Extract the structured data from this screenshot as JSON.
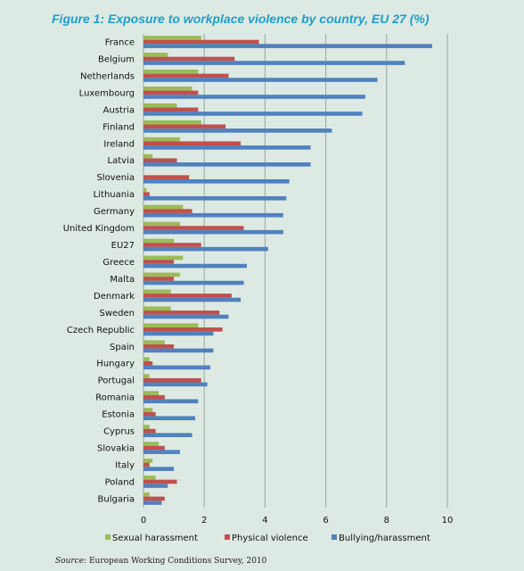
{
  "title": "Figure 1: Exposure to workplace violence by country, EU 27 (%)",
  "source": {
    "label": "Source:",
    "text": "European Working Conditions Survey, 2010"
  },
  "colors": {
    "sexual": "#9bbb59",
    "physical": "#c0504d",
    "bullying": "#4f81bd",
    "grid": "#9aa59f",
    "background": "#dde9e3"
  },
  "chart_data": {
    "type": "bar",
    "orientation": "horizontal",
    "title": "Figure 1: Exposure to workplace violence by country, EU 27 (%)",
    "xlabel": "",
    "ylabel": "",
    "xlim": [
      0,
      10
    ],
    "xticks": [
      0,
      2,
      4,
      6,
      8,
      10
    ],
    "grid": true,
    "legend_position": "bottom",
    "categories": [
      "France",
      "Belgium",
      "Netherlands",
      "Luxembourg",
      "Austria",
      "Finland",
      "Ireland",
      "Latvia",
      "Slovenia",
      "Lithuania",
      "Germany",
      "United Kingdom",
      "EU27",
      "Greece",
      "Malta",
      "Denmark",
      "Sweden",
      "Czech Republic",
      "Spain",
      "Hungary",
      "Portugal",
      "Romania",
      "Estonia",
      "Cyprus",
      "Slovakia",
      "Italy",
      "Poland",
      "Bulgaria"
    ],
    "series": [
      {
        "name": "Sexual harassment",
        "color": "#9bbb59",
        "values": [
          1.9,
          0.8,
          1.8,
          1.6,
          1.1,
          1.9,
          1.2,
          0.3,
          0.0,
          0.1,
          1.3,
          1.2,
          1.0,
          1.3,
          1.2,
          0.9,
          0.9,
          1.8,
          0.7,
          0.2,
          0.2,
          0.5,
          0.3,
          0.2,
          0.5,
          0.3,
          0.4,
          0.2
        ]
      },
      {
        "name": "Physical violence",
        "color": "#c0504d",
        "values": [
          3.8,
          3.0,
          2.8,
          1.8,
          1.8,
          2.7,
          3.2,
          1.1,
          1.5,
          0.2,
          1.6,
          3.3,
          1.9,
          1.0,
          1.0,
          2.9,
          2.5,
          2.6,
          1.0,
          0.3,
          1.9,
          0.7,
          0.4,
          0.4,
          0.7,
          0.2,
          1.1,
          0.7
        ]
      },
      {
        "name": "Bullying/harassment",
        "color": "#4f81bd",
        "values": [
          9.5,
          8.6,
          7.7,
          7.3,
          7.2,
          6.2,
          5.5,
          5.5,
          4.8,
          4.7,
          4.6,
          4.6,
          4.1,
          3.4,
          3.3,
          3.2,
          2.8,
          2.3,
          2.3,
          2.2,
          2.1,
          1.8,
          1.7,
          1.6,
          1.2,
          1.0,
          0.8,
          0.6
        ]
      }
    ]
  }
}
